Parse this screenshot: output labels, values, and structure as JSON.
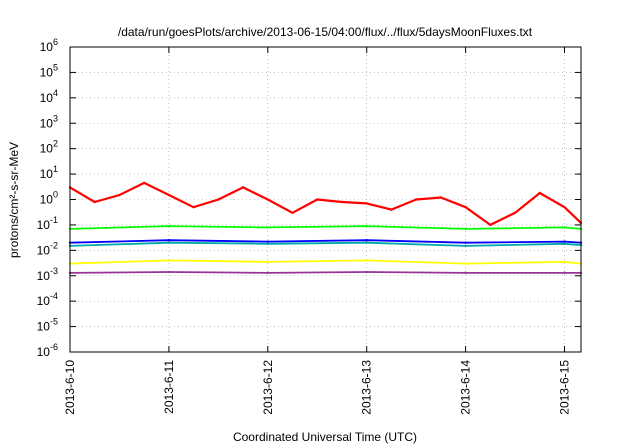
{
  "chart_data": {
    "type": "line",
    "title": "/data/run/goesPlots/archive/2013-06-15/04:00/flux/../flux/5daysMoonFluxes.txt",
    "xlabel": "Coordinated Universal Time (UTC)",
    "ylabel": "protons/cm²-s-sr-MeV",
    "yscale": "log",
    "ylim": [
      1e-06,
      1000000.0
    ],
    "yticks": [
      {
        "v": -6,
        "base": "10",
        "exp": "-6"
      },
      {
        "v": -5,
        "base": "10",
        "exp": "-5"
      },
      {
        "v": -4,
        "base": "10",
        "exp": "-4"
      },
      {
        "v": -3,
        "base": "10",
        "exp": "-3"
      },
      {
        "v": -2,
        "base": "10",
        "exp": "-2"
      },
      {
        "v": -1,
        "base": "10",
        "exp": "-1"
      },
      {
        "v": 0,
        "base": "10",
        "exp": "0"
      },
      {
        "v": 1,
        "base": "10",
        "exp": "1"
      },
      {
        "v": 2,
        "base": "10",
        "exp": "2"
      },
      {
        "v": 3,
        "base": "10",
        "exp": "3"
      },
      {
        "v": 4,
        "base": "10",
        "exp": "4"
      },
      {
        "v": 5,
        "base": "10",
        "exp": "5"
      },
      {
        "v": 6,
        "base": "10",
        "exp": "6"
      }
    ],
    "xlim": [
      "2013-06-10T00:00",
      "2013-06-15T04:00"
    ],
    "xticks": [
      {
        "date": "2013-06-10",
        "label": "2013-6-10"
      },
      {
        "date": "2013-06-11",
        "label": "2013-6-11"
      },
      {
        "date": "2013-06-12",
        "label": "2013-6-12"
      },
      {
        "date": "2013-06-13",
        "label": "2013-6-13"
      },
      {
        "date": "2013-06-14",
        "label": "2013-6-14"
      },
      {
        "date": "2013-06-15",
        "label": "2013-6-15"
      }
    ],
    "grid": true,
    "series": [
      {
        "color": "#ff0000",
        "x": [
          "2013-06-10T00:00",
          "2013-06-10T06:00",
          "2013-06-10T12:00",
          "2013-06-10T18:00",
          "2013-06-11T00:00",
          "2013-06-11T06:00",
          "2013-06-11T12:00",
          "2013-06-11T18:00",
          "2013-06-12T00:00",
          "2013-06-12T06:00",
          "2013-06-12T12:00",
          "2013-06-12T18:00",
          "2013-06-13T00:00",
          "2013-06-13T06:00",
          "2013-06-13T12:00",
          "2013-06-13T18:00",
          "2013-06-14T00:00",
          "2013-06-14T06:00",
          "2013-06-14T12:00",
          "2013-06-14T18:00",
          "2013-06-15T00:00",
          "2013-06-15T04:00"
        ],
        "y": [
          3,
          0.8,
          1.5,
          4.5,
          1.5,
          0.5,
          1,
          3,
          1,
          0.3,
          1,
          0.8,
          0.7,
          0.4,
          1,
          1.2,
          0.5,
          0.1,
          0.3,
          1.8,
          0.5,
          0.12
        ]
      },
      {
        "color": "#00ff00",
        "x": [
          "2013-06-10T00:00",
          "2013-06-11T00:00",
          "2013-06-12T00:00",
          "2013-06-13T00:00",
          "2013-06-14T00:00",
          "2013-06-15T00:00",
          "2013-06-15T04:00"
        ],
        "y": [
          0.07,
          0.09,
          0.08,
          0.09,
          0.07,
          0.08,
          0.07
        ]
      },
      {
        "color": "#00aaaa",
        "x": [
          "2013-06-10T00:00",
          "2013-06-11T00:00",
          "2013-06-12T00:00",
          "2013-06-13T00:00",
          "2013-06-14T00:00",
          "2013-06-15T00:00",
          "2013-06-15T04:00"
        ],
        "y": [
          0.015,
          0.02,
          0.018,
          0.02,
          0.015,
          0.018,
          0.016
        ]
      },
      {
        "color": "#0000ff",
        "x": [
          "2013-06-10T00:00",
          "2013-06-11T00:00",
          "2013-06-12T00:00",
          "2013-06-13T00:00",
          "2013-06-14T00:00",
          "2013-06-15T00:00",
          "2013-06-15T04:00"
        ],
        "y": [
          0.02,
          0.025,
          0.022,
          0.025,
          0.02,
          0.022,
          0.02
        ]
      },
      {
        "color": "#ffff00",
        "x": [
          "2013-06-10T00:00",
          "2013-06-11T00:00",
          "2013-06-12T00:00",
          "2013-06-13T00:00",
          "2013-06-14T00:00",
          "2013-06-15T00:00",
          "2013-06-15T04:00"
        ],
        "y": [
          0.003,
          0.004,
          0.0035,
          0.004,
          0.003,
          0.0035,
          0.003
        ]
      },
      {
        "color": "#993399",
        "x": [
          "2013-06-10T00:00",
          "2013-06-11T00:00",
          "2013-06-12T00:00",
          "2013-06-13T00:00",
          "2013-06-14T00:00",
          "2013-06-15T00:00",
          "2013-06-15T04:00"
        ],
        "y": [
          0.0013,
          0.0014,
          0.0013,
          0.0014,
          0.0013,
          0.0013,
          0.0013
        ]
      }
    ]
  }
}
